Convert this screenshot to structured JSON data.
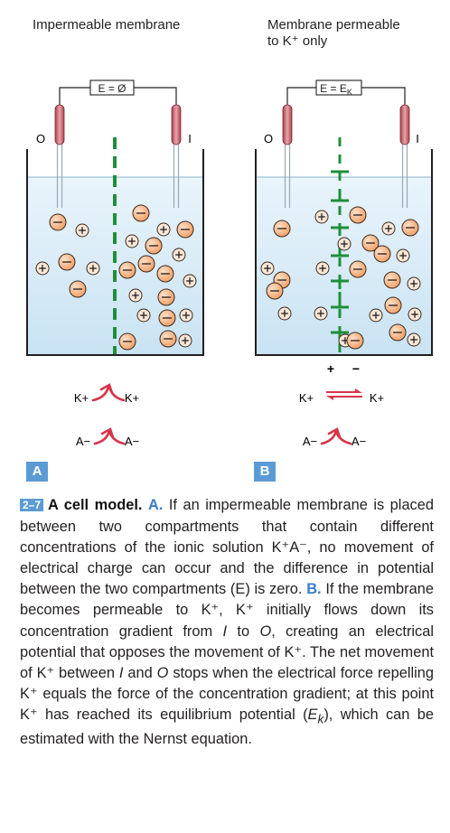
{
  "panels": {
    "a": {
      "title": "Impermeable membrane",
      "meter": "E = Ø",
      "electrode_left": "O",
      "electrode_right": "I",
      "k_left": "K+",
      "k_right": "K+",
      "a_left": "A−",
      "a_right": "A−",
      "label": "A"
    },
    "b": {
      "title_line1": "Membrane permeable",
      "title_line2": "to K⁺ only",
      "meter": "E = E",
      "meter_sub": "K",
      "electrode_left": "O",
      "electrode_right": "I",
      "plus": "+",
      "minus": "−",
      "k_left": "K+",
      "k_right": "K+",
      "a_left": "A−",
      "a_right": "A−",
      "label": "B"
    }
  },
  "caption": {
    "badge": "2–7",
    "title": "A cell model.",
    "label_a": "A.",
    "text_a": "If an impermeable membrane is placed between two compartments that contain different concentrations of the ionic solution K⁺A⁻, no movement of electrical charge can occur and the difference in potential between the two compartments (E) is zero.",
    "label_b": "B.",
    "text_b1": "If the membrane becomes permeable to K⁺, K⁺ initially flows down its concentration gradient from",
    "i1": "I",
    "text_b2": "to",
    "o1": "O",
    "text_b3": ", creating an electrical potential that opposes the movement of K⁺. The net movement of K⁺ between",
    "i2": "I",
    "text_b4": "and",
    "o2": "O",
    "text_b5": "stops when the electrical force repelling K⁺ equals the force of the concentration gradient; at this point K⁺ has reached its equilibrium potential (",
    "e": "E",
    "e_sub": "k",
    "text_b6": "), which can be estimated with the Nernst equation."
  },
  "colors": {
    "accent_blue": "#5b9bd5",
    "membrane_green": "#1f8f3a",
    "ion_orange": "#f6a872",
    "arrow_red": "#d7354a",
    "solution": "#d7ebf7"
  }
}
